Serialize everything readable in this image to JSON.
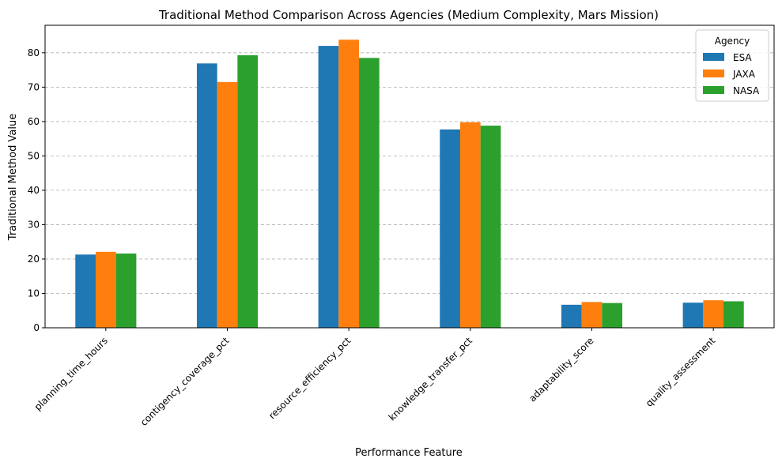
{
  "chart_data": {
    "type": "bar",
    "title": "Traditional Method Comparison Across Agencies (Medium Complexity, Mars Mission)",
    "xlabel": "Performance Feature",
    "ylabel": "Traditional Method Value",
    "ylim": [
      0,
      88
    ],
    "yticks": [
      0,
      10,
      20,
      30,
      40,
      50,
      60,
      70,
      80
    ],
    "grid": "y-dashed",
    "legend": {
      "title": "Agency",
      "position": "top-right"
    },
    "categories": [
      "planning_time_hours",
      "contigency_coverage_pct",
      "resource_efficiency_pct",
      "knowledge_transfer_pct",
      "adaptability_score",
      "quality_assessment"
    ],
    "series": [
      {
        "name": "ESA",
        "color": "#1f77b4",
        "values": [
          21.3,
          76.9,
          82.0,
          57.7,
          6.7,
          7.3
        ]
      },
      {
        "name": "JAXA",
        "color": "#ff7f0e",
        "values": [
          22.1,
          71.5,
          83.8,
          59.8,
          7.5,
          8.0
        ]
      },
      {
        "name": "NASA",
        "color": "#2ca02c",
        "values": [
          21.6,
          79.3,
          78.5,
          58.8,
          7.2,
          7.7
        ]
      }
    ]
  }
}
